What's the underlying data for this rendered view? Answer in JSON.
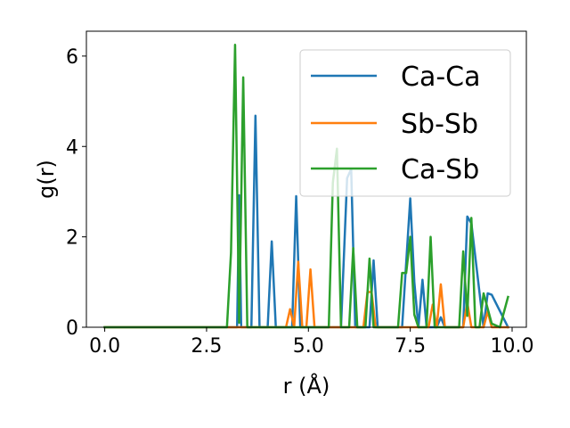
{
  "chart_data": {
    "type": "line",
    "xlabel": "r (Å)",
    "ylabel": "g(r)",
    "xlim": [
      -0.45,
      10.35
    ],
    "ylim": [
      0,
      6.55
    ],
    "xticks": [
      0.0,
      2.5,
      5.0,
      7.5,
      10.0
    ],
    "xtick_labels": [
      "0.0",
      "2.5",
      "5.0",
      "7.5",
      "10.0"
    ],
    "yticks": [
      0,
      2,
      4,
      6
    ],
    "ytick_labels": [
      "0",
      "2",
      "4",
      "6"
    ],
    "grid": false,
    "legend_position": "top-right",
    "series": [
      {
        "name": "Ca-Ca",
        "color": "#1f77b4",
        "x": [
          0.0,
          3.25,
          3.3,
          3.35,
          3.4,
          3.6,
          3.7,
          3.8,
          4.0,
          4.1,
          4.2,
          4.6,
          4.7,
          4.8,
          5.8,
          5.95,
          6.05,
          6.15,
          6.5,
          6.6,
          6.7,
          7.3,
          7.5,
          7.6,
          7.7,
          7.8,
          7.9,
          8.15,
          8.25,
          8.35,
          8.8,
          8.9,
          9.0,
          9.3,
          9.4,
          9.5,
          9.9
        ],
        "y": [
          0,
          0,
          2.92,
          0,
          0,
          0,
          4.68,
          0,
          0,
          1.9,
          0,
          0,
          2.9,
          0,
          0,
          3.3,
          3.5,
          0,
          0,
          1.48,
          0,
          0,
          2.85,
          1.0,
          0,
          1.05,
          0,
          0,
          0.22,
          0,
          0,
          2.45,
          2.3,
          0,
          0.75,
          0.72,
          0
        ]
      },
      {
        "name": "Sb-Sb",
        "color": "#ff7f0e",
        "x": [
          0.0,
          4.45,
          4.55,
          4.65,
          4.75,
          4.85,
          4.95,
          5.05,
          5.15,
          6.35,
          6.45,
          6.55,
          6.65,
          7.95,
          8.05,
          8.15,
          8.25,
          8.35,
          8.8,
          8.9,
          9.0,
          9.3,
          9.4,
          9.5,
          9.9
        ],
        "y": [
          0,
          0,
          0.4,
          0,
          1.45,
          0,
          0,
          1.28,
          0,
          0,
          0.78,
          0.78,
          0,
          0,
          0.5,
          0,
          0.95,
          0,
          0,
          0.55,
          0,
          0,
          0.35,
          0,
          0
        ]
      },
      {
        "name": "Ca-Sb",
        "color": "#2ca02c",
        "x": [
          0.0,
          3.0,
          3.1,
          3.2,
          3.3,
          3.4,
          3.5,
          5.5,
          5.6,
          5.7,
          5.8,
          6.0,
          6.1,
          6.2,
          6.4,
          6.5,
          6.6,
          7.2,
          7.3,
          7.4,
          7.5,
          7.6,
          7.7,
          7.9,
          8.0,
          8.1,
          8.7,
          8.8,
          8.9,
          9.0,
          9.1,
          9.2,
          9.3,
          9.5,
          9.7,
          9.9
        ],
        "y": [
          0,
          0,
          1.65,
          6.25,
          0.1,
          5.53,
          0,
          0,
          3.2,
          3.95,
          0,
          0,
          1.75,
          0,
          0,
          1.52,
          0,
          0,
          1.2,
          1.2,
          2.0,
          0.28,
          0,
          0,
          2.0,
          0,
          0,
          1.68,
          0.25,
          2.42,
          0,
          0,
          0.75,
          0.08,
          0,
          0.67
        ]
      }
    ]
  }
}
